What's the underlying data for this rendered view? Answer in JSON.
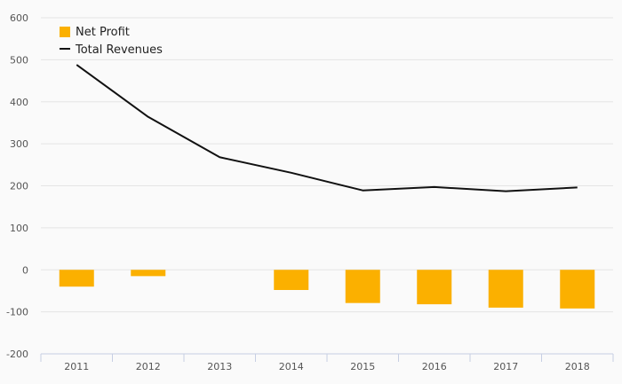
{
  "chart_data": {
    "type": "bar",
    "categories": [
      "2011",
      "2012",
      "2013",
      "2014",
      "2015",
      "2016",
      "2017",
      "2018"
    ],
    "series": [
      {
        "name": "Net Profit",
        "type": "bar",
        "color": "#fbb000",
        "values": [
          -40,
          -15,
          0,
          -48,
          -79,
          -82,
          -90,
          -92
        ]
      },
      {
        "name": "Total Revenues",
        "type": "line",
        "color": "#111111",
        "values": [
          488,
          364,
          268,
          231,
          189,
          197,
          187,
          196
        ]
      }
    ],
    "ylim": [
      -200,
      600
    ],
    "yticks": [
      600,
      500,
      400,
      300,
      200,
      100,
      0,
      -100,
      -200
    ],
    "grid": true,
    "legend": "top-left"
  }
}
